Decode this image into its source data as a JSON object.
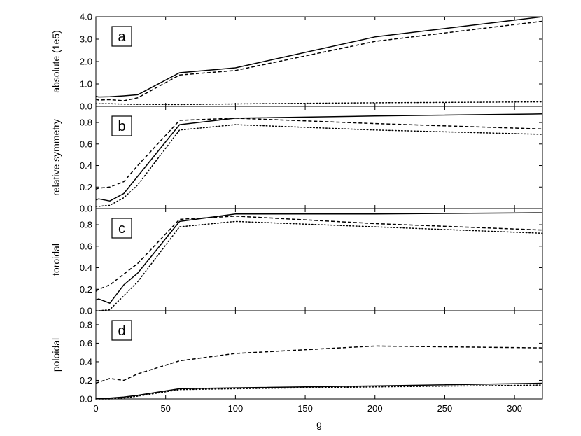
{
  "chart_data": {
    "type": "line",
    "xlabel": "g",
    "xlim": [
      0,
      320
    ],
    "x_ticks": [
      0,
      50,
      100,
      150,
      200,
      250,
      300
    ],
    "line_styles": [
      "solid",
      "dashed",
      "dotted"
    ],
    "panels": [
      {
        "letter": "a",
        "ylabel": "absolute (1e5)",
        "ylim": [
          0,
          4.0
        ],
        "y_ticks": [
          "0.0",
          "1.0",
          "2.0",
          "3.0",
          "4.0"
        ],
        "series": [
          {
            "style": "solid",
            "x": [
              0,
              2,
              10,
              20,
              30,
              60,
              100,
              200,
              320
            ],
            "y": [
              0.45,
              0.42,
              0.43,
              0.47,
              0.52,
              1.5,
              1.72,
              3.1,
              4.0
            ]
          },
          {
            "style": "dashed",
            "x": [
              0,
              2,
              10,
              20,
              30,
              60,
              100,
              200,
              320
            ],
            "y": [
              0.32,
              0.28,
              0.3,
              0.25,
              0.38,
              1.4,
              1.6,
              2.9,
              3.8
            ]
          },
          {
            "style": "dotted",
            "x": [
              0,
              10,
              20,
              30,
              60,
              100,
              200,
              320
            ],
            "y": [
              0.12,
              0.12,
              0.1,
              0.09,
              0.08,
              0.11,
              0.16,
              0.2
            ]
          }
        ]
      },
      {
        "letter": "b",
        "ylabel": "relative symmetry",
        "ylim": [
          0,
          0.95
        ],
        "y_ticks": [
          "0.0",
          "0.2",
          "0.4",
          "0.6",
          "0.8"
        ],
        "series": [
          {
            "style": "solid",
            "x": [
              0,
              2,
              10,
              20,
              30,
              60,
              100,
              200,
              320
            ],
            "y": [
              0.08,
              0.09,
              0.07,
              0.14,
              0.3,
              0.78,
              0.84,
              0.86,
              0.88
            ]
          },
          {
            "style": "dashed",
            "x": [
              0,
              2,
              10,
              20,
              30,
              60,
              100,
              200,
              320
            ],
            "y": [
              0.18,
              0.19,
              0.2,
              0.25,
              0.4,
              0.82,
              0.84,
              0.79,
              0.74
            ]
          },
          {
            "style": "dotted",
            "x": [
              0,
              2,
              10,
              20,
              30,
              60,
              100,
              200,
              320
            ],
            "y": [
              0.02,
              0.02,
              0.03,
              0.1,
              0.22,
              0.73,
              0.78,
              0.73,
              0.69
            ]
          }
        ]
      },
      {
        "letter": "c",
        "ylabel": "toroidal",
        "ylim": [
          0,
          0.95
        ],
        "y_ticks": [
          "0.0",
          "0.2",
          "0.4",
          "0.6",
          "0.8"
        ],
        "series": [
          {
            "style": "solid",
            "x": [
              0,
              2,
              10,
              20,
              30,
              60,
              100,
              200,
              320
            ],
            "y": [
              0.1,
              0.11,
              0.07,
              0.24,
              0.35,
              0.83,
              0.9,
              0.9,
              0.91
            ]
          },
          {
            "style": "dashed",
            "x": [
              0,
              2,
              10,
              20,
              30,
              60,
              100,
              200,
              320
            ],
            "y": [
              0.18,
              0.2,
              0.24,
              0.34,
              0.44,
              0.85,
              0.88,
              0.81,
              0.75
            ]
          },
          {
            "style": "dotted",
            "x": [
              0,
              2,
              10,
              20,
              30,
              60,
              100,
              200,
              320
            ],
            "y": [
              0.0,
              0.0,
              0.01,
              0.14,
              0.27,
              0.78,
              0.83,
              0.78,
              0.72
            ]
          }
        ]
      },
      {
        "letter": "d",
        "ylabel": "poloidal",
        "ylim": [
          0,
          0.95
        ],
        "y_ticks": [
          "0.0",
          "0.2",
          "0.4",
          "0.6",
          "0.8"
        ],
        "series": [
          {
            "style": "solid",
            "x": [
              0,
              10,
              20,
              30,
              60,
              100,
              200,
              320
            ],
            "y": [
              0.01,
              0.01,
              0.02,
              0.04,
              0.11,
              0.12,
              0.14,
              0.17
            ]
          },
          {
            "style": "dashed",
            "x": [
              0,
              2,
              10,
              20,
              30,
              60,
              100,
              200,
              320
            ],
            "y": [
              0.17,
              0.18,
              0.22,
              0.2,
              0.27,
              0.41,
              0.49,
              0.57,
              0.55
            ]
          },
          {
            "style": "dotted",
            "x": [
              0,
              10,
              20,
              30,
              60,
              100,
              200,
              320
            ],
            "y": [
              0.0,
              0.0,
              0.01,
              0.03,
              0.1,
              0.11,
              0.13,
              0.15
            ]
          }
        ]
      }
    ]
  }
}
